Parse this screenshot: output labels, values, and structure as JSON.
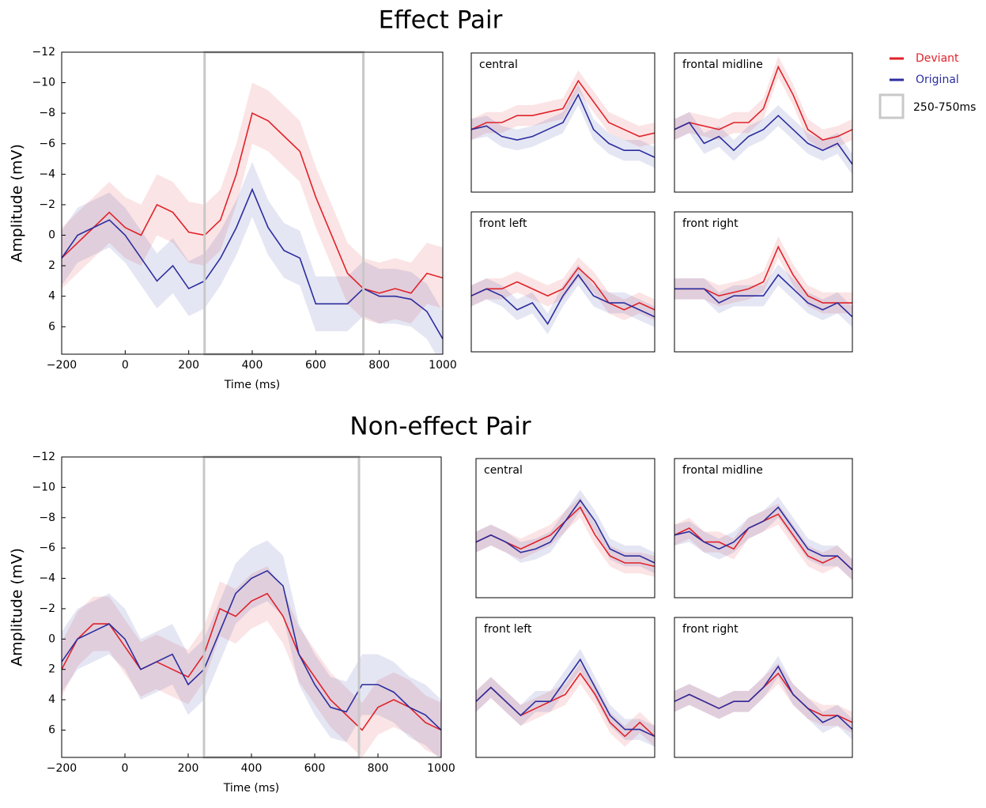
{
  "chart_data": [
    {
      "type": "line",
      "title": "Effect Pair",
      "x_label": "Time (ms)",
      "y_label": "Amplitude (mV)",
      "x": [
        -200,
        -150,
        -100,
        -50,
        0,
        50,
        100,
        150,
        200,
        250,
        300,
        350,
        400,
        450,
        500,
        550,
        600,
        650,
        700,
        750,
        800,
        850,
        900,
        950,
        1000
      ],
      "series": [
        {
          "name": "Deviant",
          "color": "#e0222a",
          "error": 2,
          "values": [
            1.5,
            0.5,
            -0.5,
            -1.5,
            -0.5,
            0,
            -2,
            -1.5,
            -0.2,
            0,
            -1,
            -4,
            -8,
            -7.5,
            -6.5,
            -5.5,
            -2.5,
            0,
            2.5,
            3.5,
            3.8,
            3.5,
            3.8,
            2.5,
            2.8
          ]
        },
        {
          "name": "Original",
          "color": "#2b2e9e",
          "error": 1.8,
          "values": [
            1.5,
            0,
            -0.5,
            -1,
            0,
            1.5,
            3,
            2,
            3.5,
            3,
            1.5,
            -0.5,
            -3,
            -0.5,
            1,
            1.5,
            4.5,
            4.5,
            4.5,
            3.5,
            4,
            4,
            4.2,
            5,
            6.8
          ]
        }
      ],
      "highlight": {
        "label": "250-750ms",
        "range": [
          250,
          750
        ]
      },
      "xlim": [
        -200,
        1000
      ],
      "ylim": [
        7.8,
        -12
      ],
      "xticks": [
        {
          "value": -200,
          "label": "−200"
        },
        0,
        200,
        400,
        600,
        800,
        1000
      ],
      "yticks": [
        {
          "value": -12,
          "label": "−12"
        },
        {
          "value": -10,
          "label": "−10"
        },
        {
          "value": -8,
          "label": "−8"
        },
        {
          "value": -6,
          "label": "−6"
        },
        {
          "value": -4,
          "label": "−4"
        },
        {
          "value": -2,
          "label": "−2"
        },
        0,
        2,
        4,
        6
      ]
    },
    {
      "type": "line",
      "title": "central",
      "x": [
        -200,
        -100,
        0,
        100,
        200,
        300,
        400,
        500,
        600,
        700,
        800,
        900,
        1000
      ],
      "series": [
        {
          "color": "#e0222a",
          "error": 1.5,
          "values": [
            -1,
            -2,
            -2,
            -3,
            -3,
            -3.5,
            -4,
            -8,
            -5,
            -2,
            -1,
            0,
            -0.5
          ]
        },
        {
          "color": "#2b2e9e",
          "error": 1.5,
          "values": [
            -1,
            -1.5,
            0,
            0.5,
            0,
            -1,
            -2,
            -6,
            -1,
            1,
            2,
            2,
            3
          ]
        }
      ],
      "xlim": [
        -200,
        1000
      ],
      "ylim": [
        8,
        -12
      ]
    },
    {
      "type": "line",
      "title": "frontal midline",
      "x": [
        -200,
        -100,
        0,
        100,
        200,
        300,
        400,
        500,
        600,
        700,
        800,
        900,
        1000
      ],
      "series": [
        {
          "color": "#e0222a",
          "error": 1.5,
          "values": [
            -1,
            -2,
            -1.5,
            -1,
            -2,
            -2,
            -4,
            -10,
            -6,
            -1,
            0.5,
            0,
            -1
          ]
        },
        {
          "color": "#2b2e9e",
          "error": 1.5,
          "values": [
            -1,
            -2,
            1,
            0,
            2,
            0,
            -1,
            -3,
            -1,
            1,
            2,
            1,
            4
          ]
        }
      ],
      "xlim": [
        -200,
        1000
      ],
      "ylim": [
        8,
        -12
      ]
    },
    {
      "type": "line",
      "title": "front left",
      "x": [
        -200,
        -100,
        0,
        100,
        200,
        300,
        400,
        500,
        600,
        700,
        800,
        900,
        1000
      ],
      "series": [
        {
          "color": "#e0222a",
          "error": 1.5,
          "values": [
            0,
            -1,
            -1,
            -2,
            -1,
            0,
            -1,
            -4,
            -2,
            1,
            2,
            1,
            2
          ]
        },
        {
          "color": "#2b2e9e",
          "error": 1.5,
          "values": [
            0,
            -1,
            0,
            2,
            1,
            4,
            0,
            -3,
            0,
            1,
            1,
            2,
            3
          ]
        }
      ],
      "xlim": [
        -200,
        1000
      ],
      "ylim": [
        8,
        -12
      ]
    },
    {
      "type": "line",
      "title": "front right",
      "x": [
        -200,
        -100,
        0,
        100,
        200,
        300,
        400,
        500,
        600,
        700,
        800,
        900,
        1000
      ],
      "series": [
        {
          "color": "#e0222a",
          "error": 1.5,
          "values": [
            -1,
            -1,
            -1,
            0,
            -0.5,
            -1,
            -2,
            -7,
            -3,
            0,
            1,
            1,
            1
          ]
        },
        {
          "color": "#2b2e9e",
          "error": 1.5,
          "values": [
            -1,
            -1,
            -1,
            1,
            0,
            0,
            0,
            -3,
            -1,
            1,
            2,
            1,
            3
          ]
        }
      ],
      "xlim": [
        -200,
        1000
      ],
      "ylim": [
        8,
        -12
      ]
    },
    {
      "type": "line",
      "title": "Non-effect Pair",
      "x_label": "Time (ms)",
      "y_label": "Amplitude (mV)",
      "x": [
        -200,
        -150,
        -100,
        -50,
        0,
        50,
        100,
        150,
        200,
        250,
        300,
        350,
        400,
        450,
        500,
        550,
        600,
        650,
        700,
        750,
        800,
        850,
        900,
        950,
        1000
      ],
      "series": [
        {
          "color": "#e0222a",
          "error": 1.8,
          "values": [
            2,
            0,
            -1,
            -1,
            0.5,
            2,
            1.5,
            2,
            2.5,
            1,
            -2,
            -1.5,
            -2.5,
            -3,
            -1.5,
            1,
            2.5,
            4,
            5,
            6,
            4.5,
            4,
            4.5,
            5.5,
            6
          ]
        },
        {
          "color": "#2b2e9e",
          "error": 2,
          "values": [
            1.5,
            0,
            -0.5,
            -1,
            0,
            2,
            1.5,
            1,
            3,
            2,
            -0.5,
            -3,
            -4,
            -4.5,
            -3.5,
            1,
            3,
            4.5,
            4.8,
            3,
            3,
            3.5,
            4.5,
            5,
            6
          ]
        }
      ],
      "highlight": {
        "range": [
          250,
          740
        ]
      },
      "xlim": [
        -200,
        1000
      ],
      "ylim": [
        7.8,
        -12
      ],
      "xticks": [
        {
          "value": -200,
          "label": "−200"
        },
        0,
        200,
        400,
        600,
        800,
        1000
      ],
      "yticks": [
        {
          "value": -12,
          "label": "−12"
        },
        {
          "value": -10,
          "label": "−10"
        },
        {
          "value": -8,
          "label": "−8"
        },
        {
          "value": -6,
          "label": "−6"
        },
        {
          "value": -4,
          "label": "−4"
        },
        {
          "value": -2,
          "label": "−2"
        },
        0,
        2,
        4,
        6
      ]
    },
    {
      "type": "line",
      "title": "central",
      "x": [
        -200,
        -100,
        0,
        100,
        200,
        300,
        400,
        500,
        600,
        700,
        800,
        900,
        1000
      ],
      "series": [
        {
          "color": "#e0222a",
          "error": 1.5,
          "values": [
            0,
            -1,
            0,
            1,
            0,
            -1,
            -3,
            -5,
            -1,
            2,
            3,
            3,
            3.5
          ]
        },
        {
          "color": "#2b2e9e",
          "error": 1.5,
          "values": [
            0,
            -1,
            0,
            1.5,
            1,
            0,
            -3,
            -6,
            -3,
            1,
            2,
            2,
            3
          ]
        }
      ],
      "xlim": [
        -200,
        1000
      ],
      "ylim": [
        8,
        -12
      ]
    },
    {
      "type": "line",
      "title": "frontal midline",
      "x": [
        -200,
        -100,
        0,
        100,
        200,
        300,
        400,
        500,
        600,
        700,
        800,
        900,
        1000
      ],
      "series": [
        {
          "color": "#e0222a",
          "error": 1.5,
          "values": [
            -1,
            -2,
            0,
            0,
            1,
            -2,
            -3,
            -4,
            -1,
            2,
            3,
            2,
            4
          ]
        },
        {
          "color": "#2b2e9e",
          "error": 1.5,
          "values": [
            -1,
            -1.5,
            0,
            1,
            0,
            -2,
            -3,
            -5,
            -2,
            1,
            2,
            2,
            4
          ]
        }
      ],
      "xlim": [
        -200,
        1000
      ],
      "ylim": [
        8,
        -12
      ]
    },
    {
      "type": "line",
      "title": "front left",
      "x": [
        -200,
        -100,
        0,
        100,
        200,
        300,
        400,
        500,
        600,
        700,
        800,
        900,
        1000
      ],
      "series": [
        {
          "color": "#e0222a",
          "error": 1.5,
          "values": [
            0,
            -2,
            0,
            2,
            1,
            0,
            -1,
            -4,
            -1,
            3,
            5,
            3,
            5
          ]
        },
        {
          "color": "#2b2e9e",
          "error": 1.5,
          "values": [
            0,
            -2,
            0,
            2,
            0,
            0,
            -3,
            -6,
            -2,
            2,
            4,
            4,
            5
          ]
        }
      ],
      "xlim": [
        -200,
        1000
      ],
      "ylim": [
        8,
        -12
      ]
    },
    {
      "type": "line",
      "title": "front right",
      "x": [
        -200,
        -100,
        0,
        100,
        200,
        300,
        400,
        500,
        600,
        700,
        800,
        900,
        1000
      ],
      "series": [
        {
          "color": "#e0222a",
          "error": 1.5,
          "values": [
            0,
            -1,
            0,
            1,
            0,
            0,
            -2,
            -4,
            -1,
            1,
            2,
            2,
            3
          ]
        },
        {
          "color": "#2b2e9e",
          "error": 1.5,
          "values": [
            0,
            -1,
            0,
            1,
            0,
            0,
            -2,
            -5,
            -1,
            1,
            3,
            2,
            4
          ]
        }
      ],
      "xlim": [
        -200,
        1000
      ],
      "ylim": [
        8,
        -12
      ]
    }
  ]
}
